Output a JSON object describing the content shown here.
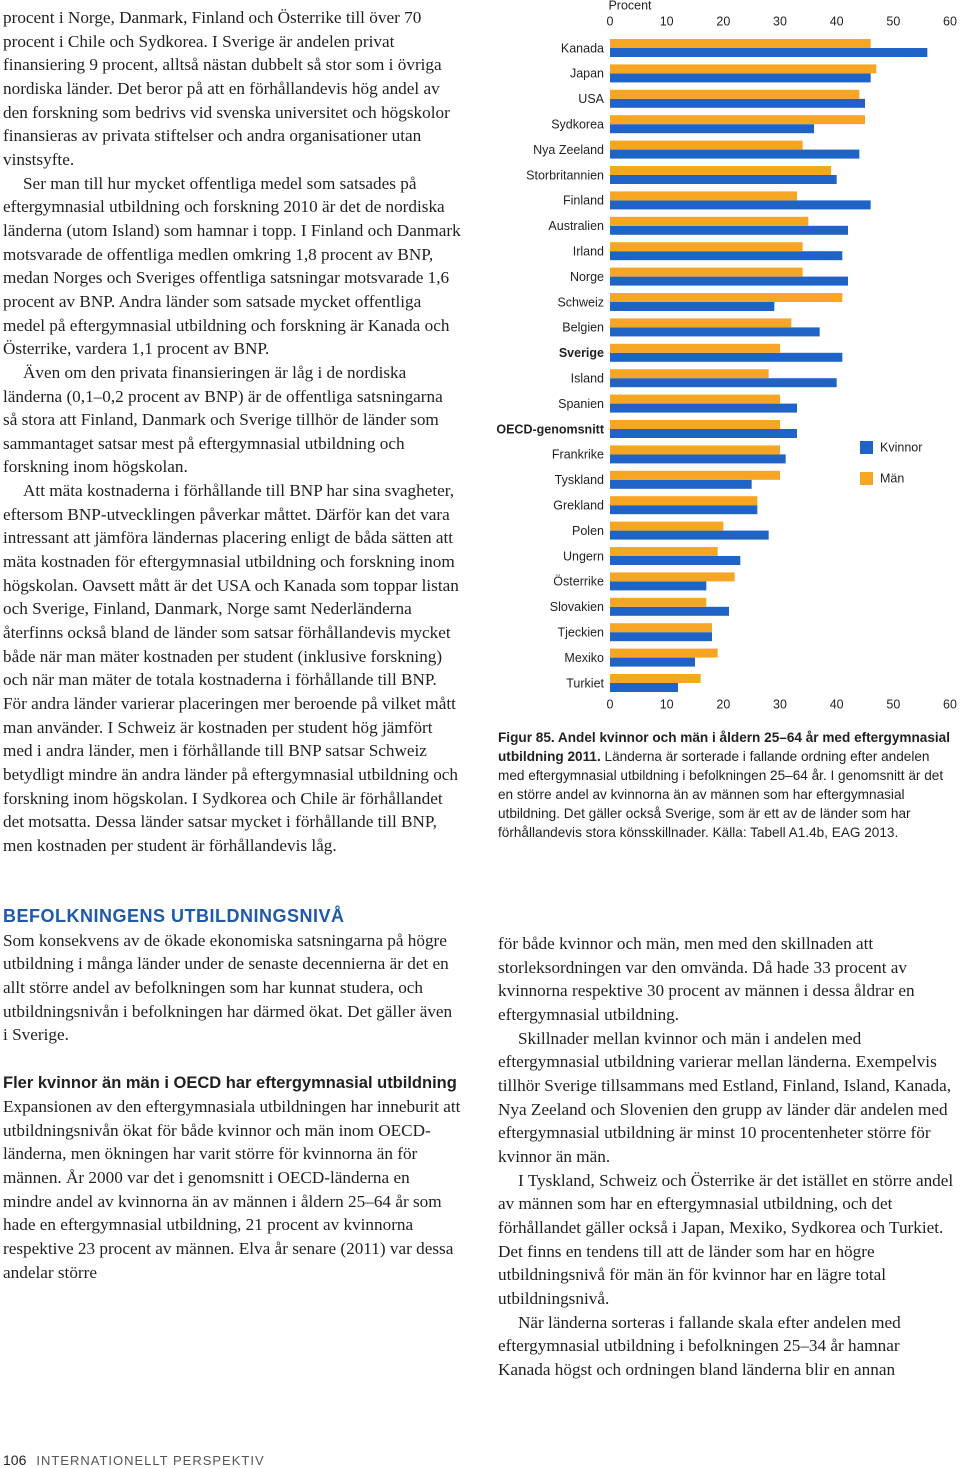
{
  "body_left": {
    "paragraphs_1": [
      "procent i Norge, Danmark, Finland och Österrike till över 70 procent i Chile och Sydkorea. I Sverige är andelen privat finansiering 9 procent, alltså nästan dubbelt så stor som i övriga nordiska länder. Det beror på att en förhållandevis hög andel av den forskning som bedrivs vid svenska universitet och högskolor finansieras av privata stiftelser och andra organisationer utan vinstsyfte.",
      "Ser man till hur mycket offentliga medel som satsades på eftergymnasial utbildning och forskning 2010 är det de nordiska länderna (utom Island) som hamnar i topp. I Finland och Danmark motsvarade de offentliga medlen omkring 1,8 procent av BNP, medan Norges och Sveriges offentliga satsningar motsvarade 1,6 procent av BNP. Andra länder som satsade mycket offentliga medel på eftergymnasial utbildning och forskning är Kanada och Österrike, vardera 1,1 procent av BNP.",
      "Även om den privata finansieringen är låg i de nordiska länderna (0,1–0,2 procent av BNP) är de offentliga satsningarna så stora att Finland, Danmark och Sverige tillhör de länder som sammantaget satsar mest på eftergymnasial utbildning och forskning inom högskolan.",
      "Att mäta kostnaderna i förhållande till BNP har sina svagheter, eftersom BNP-utvecklingen påverkar måttet. Därför kan det vara intressant att jämföra ländernas placering enligt de båda sätten att mäta kostnaden för eftergymnasial utbildning och forskning inom högskolan. Oavsett mått är det USA och Kanada som toppar listan och Sverige, Finland, Danmark, Norge samt Nederländerna återfinns också bland de länder som satsar förhållandevis mycket både när man mäter kostnaden per student (inklusive forskning) och när man mäter de totala kostnaderna i förhållande till BNP. För andra länder varierar placeringen mer beroende på vilket mått man använder. I Schweiz är kostnaden per student hög jämfört med i andra länder, men i förhållande till BNP satsar Schweiz betydligt mindre än andra länder på eftergymnasial utbildning och forskning inom högskolan. I Sydkorea och Chile är förhållandet det motsatta. Dessa länder satsar mycket i förhållande till BNP, men kostnaden per student är förhållandevis låg."
    ],
    "heading": "BEFOLKNINGENS UTBILDNINGSNIVÅ",
    "paragraphs_2": [
      "Som konsekvens av de ökade ekonomiska satsningarna på högre utbildning i många länder under de senaste decennierna är det en allt större andel av befolkningen som har kunnat studera, och utbildningsnivån i befolkningen har därmed ökat. Det gäller även i Sverige."
    ],
    "subheading": "Fler kvinnor än män i OECD har eftergymnasial utbildning",
    "paragraphs_3": [
      "Expansionen av den eftergymnasiala utbildningen har inneburit att utbildningsnivån ökat för både kvinnor och män inom OECD-länderna, men ökningen har varit större för kvinnorna än för männen. År 2000 var det i genomsnitt i OECD-länderna en mindre andel av kvinnorna än av männen i åldern 25–64 år som hade en eftergymnasial utbildning, 21 procent av kvinnorna respektive 23 procent av männen. Elva år senare (2011) var dessa andelar större"
    ]
  },
  "chart_data": {
    "type": "hbar",
    "xlabel": "Procent",
    "categories": [
      "Kanada",
      "Japan",
      "USA",
      "Sydkorea",
      "Nya Zeeland",
      "Storbritannien",
      "Finland",
      "Australien",
      "Irland",
      "Norge",
      "Schweiz",
      "Belgien",
      "Sverige",
      "Island",
      "Spanien",
      "OECD-genomsnitt",
      "Frankrike",
      "Tyskland",
      "Grekland",
      "Polen",
      "Ungern",
      "Österrike",
      "Slovakien",
      "Tjeckien",
      "Mexiko",
      "Turkiet"
    ],
    "bold_categories": [
      12,
      15
    ],
    "series": [
      {
        "name": "Kvinnor",
        "color": "#1f63c6",
        "values": [
          56,
          46,
          45,
          36,
          44,
          40,
          46,
          42,
          41,
          42,
          29,
          37,
          41,
          40,
          33,
          33,
          31,
          25,
          26,
          28,
          23,
          17,
          21,
          18,
          15,
          12
        ]
      },
      {
        "name": "Män",
        "color": "#f6a623",
        "values": [
          46,
          47,
          44,
          45,
          34,
          39,
          33,
          35,
          34,
          34,
          41,
          32,
          30,
          28,
          30,
          30,
          30,
          30,
          26,
          20,
          19,
          22,
          17,
          18,
          19,
          16
        ]
      }
    ],
    "xlim": [
      0,
      60
    ],
    "xticks": [
      0,
      10,
      20,
      30,
      40,
      50,
      60
    ],
    "grid": false,
    "legend": "right"
  },
  "caption": {
    "title": "Figur 85. Andel kvinnor och män i åldern 25–64 år med eftergymnasial utbildning 2011.",
    "text": "Länderna är sorterade i fallande ordning efter andelen med eftergymnasial utbildning i befolkningen 25–64 år. I genomsnitt är det en större andel av kvinnorna än av männen som har eftergymnasial utbildning. Det gäller också Sverige, som är ett av de länder som har förhållandevis stora könsskillnader. Källa: Tabell A1.4b, EAG 2013."
  },
  "body_right": {
    "paragraphs": [
      "för både kvinnor och män, men med den skillnaden att storleksordningen var den omvända. Då hade 33 procent av kvinnorna respektive 30 procent av männen i dessa åldrar en eftergymnasial utbildning.",
      "Skillnader mellan kvinnor och män i andelen med eftergymnasial utbildning varierar mellan länderna. Exempelvis tillhör Sverige tillsammans med Estland, Finland, Island, Kanada, Nya Zeeland och Slovenien den grupp av länder där andelen med eftergymnasial utbildning är minst 10 procentenheter större för kvinnor än män.",
      "I Tyskland, Schweiz och Österrike är det istället en större andel av männen som har en eftergymnasial utbildning, och det förhållandet gäller också i Japan, Mexiko, Sydkorea och Turkiet. Det finns en tendens till att de länder som har en högre utbildningsnivå för män än för kvinnor har en lägre total utbildningsnivå.",
      "När länderna sorteras i fallande skala efter andelen med eftergymnasial utbildning i befolkningen 25–34 år hamnar Kanada högst och ordningen bland länderna blir en annan"
    ]
  },
  "footer": {
    "page_number": "106",
    "section": "INTERNATIONELLT PERSPEKTIV"
  }
}
